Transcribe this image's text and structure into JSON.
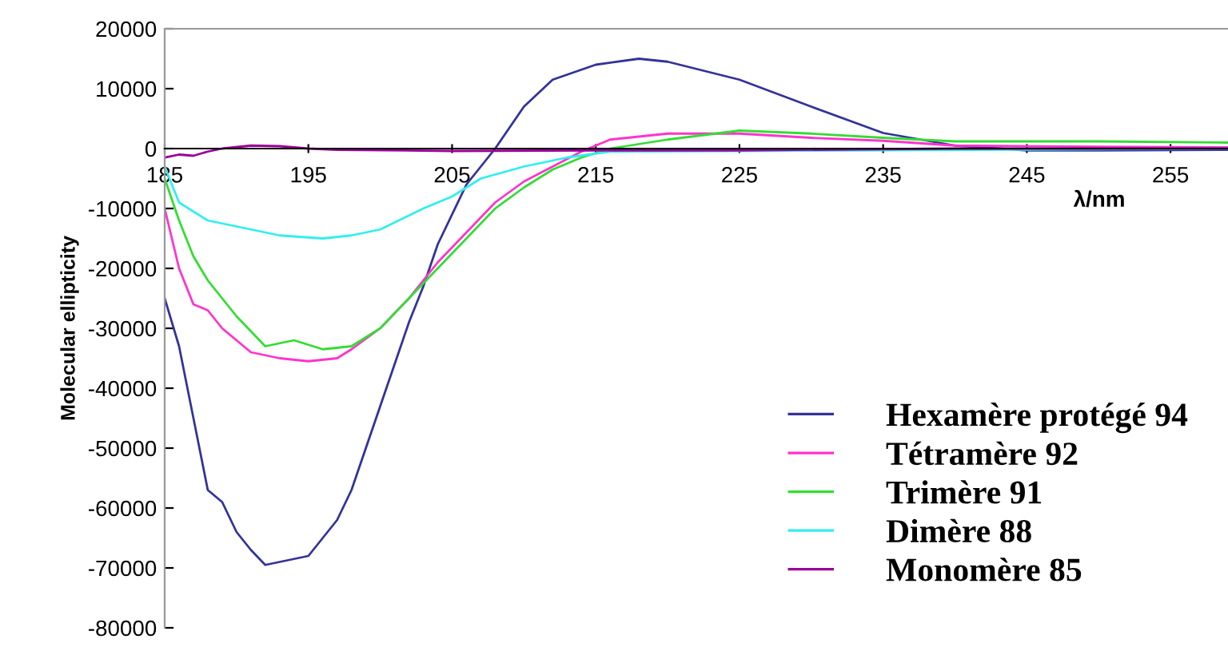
{
  "chart_data": {
    "type": "line",
    "xlabel": "λ/nm",
    "ylabel": "Molecular ellipticity",
    "xlim": [
      185,
      259
    ],
    "ylim": [
      -80000,
      20000
    ],
    "xticks": [
      185,
      195,
      205,
      215,
      225,
      235,
      245,
      255
    ],
    "yticks": [
      -80000,
      -70000,
      -60000,
      -50000,
      -40000,
      -30000,
      -20000,
      -10000,
      0,
      10000,
      20000
    ],
    "grid": false,
    "legend": "bottom right",
    "marker": "none",
    "line_style": "solid",
    "series": [
      {
        "name": "Hexamère protégé 94",
        "color": "#333399",
        "x": [
          185,
          186,
          187,
          188,
          189,
          190,
          191,
          192,
          193,
          194,
          195,
          196,
          197,
          198,
          199,
          200,
          201,
          202,
          203,
          204,
          206,
          208,
          210,
          212,
          215,
          218,
          220,
          225,
          230,
          235,
          240,
          245,
          250,
          259
        ],
        "values": [
          -25000,
          -33000,
          -45000,
          -57000,
          -59000,
          -64000,
          -67000,
          -69500,
          -69000,
          -68500,
          -68000,
          -65000,
          -62000,
          -57000,
          -50000,
          -43000,
          -36000,
          -29000,
          -23000,
          -16000,
          -6000,
          0,
          7000,
          11500,
          14000,
          15000,
          14500,
          11500,
          7000,
          2600,
          500,
          -300,
          -300,
          -200
        ]
      },
      {
        "name": "Tétramère 92",
        "color": "#ff33cc",
        "x": [
          185,
          186,
          187,
          188,
          189,
          190,
          191,
          193,
          195,
          197,
          198,
          200,
          202,
          204,
          206,
          208,
          210,
          212,
          214,
          216,
          220,
          225,
          230,
          235,
          240,
          250,
          259
        ],
        "values": [
          -10000,
          -20000,
          -26000,
          -27000,
          -30000,
          -32000,
          -34000,
          -35000,
          -35500,
          -35000,
          -33500,
          -30000,
          -25000,
          -19000,
          -14000,
          -9000,
          -5500,
          -3000,
          -500,
          1500,
          2500,
          2500,
          1800,
          1300,
          500,
          300,
          200
        ]
      },
      {
        "name": "Trimère 91",
        "color": "#33dd33",
        "x": [
          185,
          186,
          187,
          188,
          190,
          192,
          194,
          196,
          198,
          200,
          202,
          204,
          206,
          208,
          210,
          212,
          214,
          216,
          220,
          225,
          230,
          235,
          240,
          250,
          259
        ],
        "values": [
          -5000,
          -12000,
          -18000,
          -22000,
          -28000,
          -33000,
          -32000,
          -33500,
          -33000,
          -30000,
          -25000,
          -20000,
          -15000,
          -10000,
          -6500,
          -3500,
          -1500,
          0,
          1500,
          3000,
          2500,
          1800,
          1200,
          1200,
          1000
        ]
      },
      {
        "name": "Dimère 88",
        "color": "#33eeee",
        "x": [
          185,
          186,
          188,
          190,
          193,
          196,
          198,
          200,
          203,
          205,
          207,
          210,
          213,
          216,
          259
        ],
        "values": [
          -3000,
          -9000,
          -12000,
          -13000,
          -14500,
          -15000,
          -14500,
          -13500,
          -10000,
          -8000,
          -5000,
          -3000,
          -1500,
          -500,
          0
        ]
      },
      {
        "name": "Monomère 85",
        "color": "#990099",
        "x": [
          185,
          186,
          187,
          188,
          189,
          191,
          193,
          195,
          197,
          205,
          215,
          225,
          240,
          259
        ],
        "values": [
          -1500,
          -1000,
          -1200,
          -500,
          0,
          500,
          400,
          0,
          -200,
          -400,
          -300,
          -300,
          0,
          0
        ]
      }
    ]
  }
}
